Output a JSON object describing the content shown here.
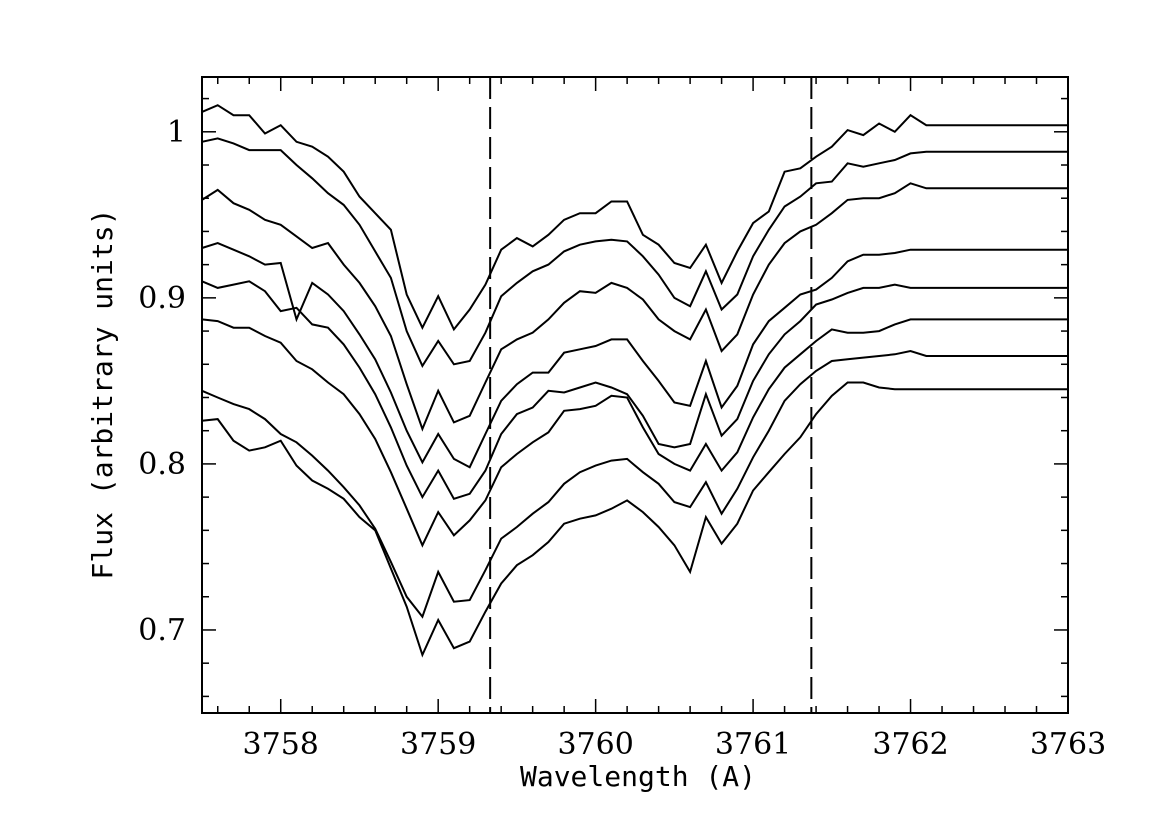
{
  "chart_data": {
    "type": "line",
    "xlabel": "Wavelength (A)",
    "ylabel": "Flux (arbitrary units)",
    "xlim": [
      3757.5,
      3763.0
    ],
    "ylim": [
      0.65,
      1.033
    ],
    "x_ticks": [
      3758,
      3759,
      3760,
      3761,
      3762,
      3763
    ],
    "x_tick_labels": [
      "3758",
      "3759",
      "3760",
      "3761",
      "3762",
      "3763"
    ],
    "y_ticks": [
      0.7,
      0.8,
      0.9,
      1.0
    ],
    "y_tick_labels": [
      "0.7",
      "0.8",
      "0.9",
      "1"
    ],
    "vlines": [
      3759.33,
      3761.37
    ],
    "grid": false,
    "x": [
      3757.5,
      3757.6,
      3757.7,
      3757.8,
      3757.9,
      3758.0,
      3758.1,
      3758.2,
      3758.3,
      3758.4,
      3758.5,
      3758.6,
      3758.7,
      3758.8,
      3758.9,
      3759.0,
      3759.1,
      3759.2,
      3759.3,
      3759.4,
      3759.5,
      3759.6,
      3759.7,
      3759.8,
      3759.9,
      3760.0,
      3760.1,
      3760.2,
      3760.3,
      3760.4,
      3760.5,
      3760.6,
      3760.7,
      3760.8,
      3760.9,
      3761.0,
      3761.1,
      3761.2,
      3761.3,
      3761.4,
      3761.5,
      3761.6,
      3761.7,
      3761.8,
      3761.9,
      3762.0,
      3762.1,
      3762.2,
      3762.3,
      3762.4,
      3762.5,
      3762.6,
      3762.7,
      3762.8,
      3762.9,
      3763.0
    ],
    "series": [
      {
        "values": [
          1.012,
          1.016,
          1.01,
          1.01,
          0.999,
          1.004,
          0.994,
          0.991,
          0.985,
          0.976,
          0.961,
          0.951,
          0.941,
          0.902,
          0.882,
          0.901,
          0.881,
          0.893,
          0.908,
          0.929,
          0.936,
          0.931,
          0.938,
          0.947,
          0.951,
          0.951,
          0.958,
          0.958,
          0.938,
          0.932,
          0.921,
          0.918,
          0.932,
          0.909,
          0.928,
          0.945,
          0.952,
          0.976,
          0.978,
          0.985,
          0.991,
          1.001,
          0.998,
          1.005,
          1.0,
          1.01,
          1.004,
          1.004,
          1.004,
          1.004,
          1.004,
          1.004,
          1.004,
          1.004,
          1.004,
          1.004
        ]
      },
      {
        "values": [
          0.994,
          0.996,
          0.993,
          0.989,
          0.989,
          0.989,
          0.98,
          0.972,
          0.963,
          0.956,
          0.944,
          0.928,
          0.912,
          0.88,
          0.859,
          0.874,
          0.86,
          0.862,
          0.879,
          0.901,
          0.909,
          0.916,
          0.92,
          0.928,
          0.932,
          0.934,
          0.935,
          0.934,
          0.925,
          0.914,
          0.9,
          0.895,
          0.916,
          0.893,
          0.902,
          0.925,
          0.941,
          0.955,
          0.961,
          0.969,
          0.97,
          0.981,
          0.979,
          0.981,
          0.983,
          0.987,
          0.988,
          0.988,
          0.988,
          0.988,
          0.988,
          0.988,
          0.988,
          0.988,
          0.988,
          0.988
        ]
      },
      {
        "values": [
          0.959,
          0.965,
          0.957,
          0.953,
          0.947,
          0.944,
          0.937,
          0.93,
          0.933,
          0.92,
          0.909,
          0.895,
          0.877,
          0.848,
          0.821,
          0.844,
          0.825,
          0.829,
          0.849,
          0.869,
          0.875,
          0.879,
          0.887,
          0.897,
          0.904,
          0.903,
          0.909,
          0.906,
          0.899,
          0.887,
          0.88,
          0.875,
          0.893,
          0.868,
          0.878,
          0.902,
          0.92,
          0.933,
          0.94,
          0.944,
          0.951,
          0.959,
          0.96,
          0.96,
          0.963,
          0.969,
          0.966,
          0.966,
          0.966,
          0.966,
          0.966,
          0.966,
          0.966,
          0.966,
          0.966,
          0.966
        ]
      },
      {
        "values": [
          0.93,
          0.933,
          0.929,
          0.925,
          0.92,
          0.921,
          0.887,
          0.909,
          0.902,
          0.892,
          0.878,
          0.863,
          0.843,
          0.82,
          0.801,
          0.818,
          0.803,
          0.798,
          0.818,
          0.838,
          0.848,
          0.855,
          0.855,
          0.867,
          0.869,
          0.871,
          0.875,
          0.875,
          0.862,
          0.85,
          0.837,
          0.835,
          0.862,
          0.834,
          0.847,
          0.872,
          0.886,
          0.894,
          0.902,
          0.905,
          0.912,
          0.922,
          0.926,
          0.926,
          0.927,
          0.929,
          0.929,
          0.929,
          0.929,
          0.929,
          0.929,
          0.929,
          0.929,
          0.929,
          0.929,
          0.929
        ]
      },
      {
        "values": [
          0.91,
          0.906,
          0.908,
          0.91,
          0.904,
          0.892,
          0.894,
          0.884,
          0.882,
          0.872,
          0.858,
          0.842,
          0.822,
          0.799,
          0.78,
          0.796,
          0.779,
          0.782,
          0.796,
          0.818,
          0.83,
          0.834,
          0.844,
          0.843,
          0.846,
          0.849,
          0.846,
          0.842,
          0.829,
          0.812,
          0.81,
          0.812,
          0.842,
          0.817,
          0.827,
          0.85,
          0.866,
          0.878,
          0.886,
          0.896,
          0.899,
          0.903,
          0.906,
          0.906,
          0.908,
          0.906,
          0.906,
          0.906,
          0.906,
          0.906,
          0.906,
          0.906,
          0.906,
          0.906,
          0.906,
          0.906
        ]
      },
      {
        "values": [
          0.887,
          0.886,
          0.882,
          0.882,
          0.877,
          0.873,
          0.862,
          0.857,
          0.849,
          0.842,
          0.83,
          0.815,
          0.795,
          0.773,
          0.751,
          0.771,
          0.757,
          0.766,
          0.778,
          0.798,
          0.806,
          0.813,
          0.819,
          0.832,
          0.833,
          0.835,
          0.841,
          0.84,
          0.822,
          0.806,
          0.8,
          0.796,
          0.812,
          0.796,
          0.807,
          0.828,
          0.845,
          0.858,
          0.866,
          0.874,
          0.881,
          0.879,
          0.879,
          0.88,
          0.884,
          0.887,
          0.887,
          0.887,
          0.887,
          0.887,
          0.887,
          0.887,
          0.887,
          0.887,
          0.887,
          0.887
        ]
      },
      {
        "values": [
          0.844,
          0.84,
          0.836,
          0.833,
          0.827,
          0.818,
          0.813,
          0.805,
          0.796,
          0.786,
          0.775,
          0.761,
          0.741,
          0.72,
          0.708,
          0.735,
          0.717,
          0.718,
          0.736,
          0.755,
          0.762,
          0.77,
          0.777,
          0.788,
          0.795,
          0.799,
          0.802,
          0.803,
          0.795,
          0.788,
          0.777,
          0.774,
          0.789,
          0.77,
          0.785,
          0.804,
          0.82,
          0.838,
          0.848,
          0.856,
          0.862,
          0.863,
          0.864,
          0.865,
          0.866,
          0.868,
          0.865,
          0.865,
          0.865,
          0.865,
          0.865,
          0.865,
          0.865,
          0.865,
          0.865,
          0.865
        ]
      },
      {
        "values": [
          0.826,
          0.827,
          0.814,
          0.808,
          0.81,
          0.814,
          0.799,
          0.79,
          0.785,
          0.779,
          0.768,
          0.76,
          0.737,
          0.714,
          0.685,
          0.706,
          0.689,
          0.693,
          0.711,
          0.728,
          0.739,
          0.745,
          0.753,
          0.764,
          0.767,
          0.769,
          0.773,
          0.778,
          0.771,
          0.762,
          0.751,
          0.735,
          0.768,
          0.752,
          0.764,
          0.784,
          0.795,
          0.806,
          0.816,
          0.83,
          0.841,
          0.849,
          0.849,
          0.846,
          0.845,
          0.845,
          0.845,
          0.845,
          0.845,
          0.845,
          0.845,
          0.845,
          0.845,
          0.845,
          0.845,
          0.845
        ]
      }
    ]
  }
}
